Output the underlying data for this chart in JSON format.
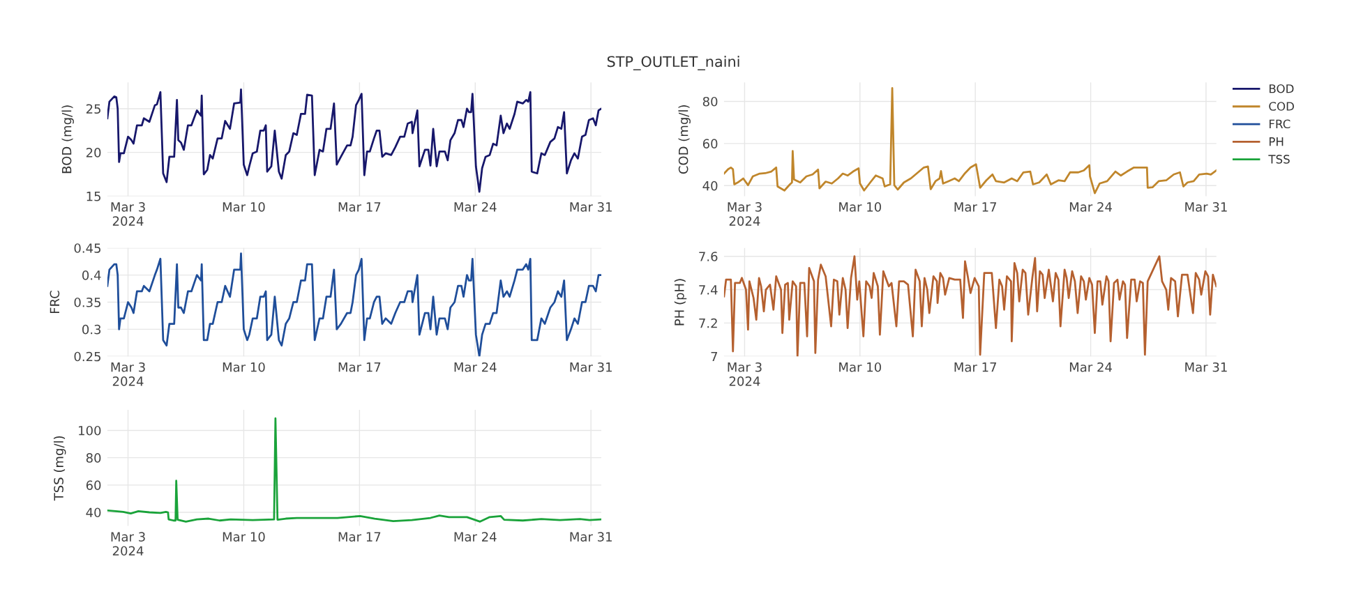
{
  "chart_data": [
    {
      "type": "line",
      "title": "STP_OUTLET_naini",
      "ylabel": "BOD (mg/l)",
      "grid": true,
      "marker": "none",
      "line_style": "solid",
      "xlim": [
        "2024-03-01T18:00",
        "2024-03-31T15:00"
      ],
      "ylim": [
        15,
        28
      ],
      "yticks": [
        15,
        20,
        25
      ],
      "xticks": [
        {
          "value": "2024-03-03",
          "label": "Mar 3\n2024"
        },
        {
          "value": "2024-03-10",
          "label": "Mar 10"
        },
        {
          "value": "2024-03-17",
          "label": "Mar 17"
        },
        {
          "value": "2024-03-24",
          "label": "Mar 24"
        },
        {
          "value": "2024-03-31",
          "label": "Mar 31"
        }
      ],
      "x": [
        "2024-03-01T18:00",
        "2024-03-01T21:00",
        "2024-03-02T04:00",
        "2024-03-02T07:00",
        "2024-03-02T09:00",
        "2024-03-02T11:00",
        "2024-03-02T13:00",
        "2024-03-02T18:00",
        "2024-03-03T00:00",
        "2024-03-03T05:00",
        "2024-03-03T08:00",
        "2024-03-03T13:00",
        "2024-03-03T20:00",
        "2024-03-03T23:00",
        "2024-03-04T07:00",
        "2024-03-04T15:00",
        "2024-03-04T18:00",
        "2024-03-04T23:00",
        "2024-03-05T03:00",
        "2024-03-05T08:00",
        "2024-03-05T12:00",
        "2024-03-05T19:00",
        "2024-03-05T23:00",
        "2024-03-06T01:00",
        "2024-03-06T05:00",
        "2024-03-06T09:00",
        "2024-03-06T15:00",
        "2024-03-06T20:00",
        "2024-03-07T04:00",
        "2024-03-07T10:00",
        "2024-03-07T11:00",
        "2024-03-07T14:00",
        "2024-03-07T19:00",
        "2024-03-07T23:00",
        "2024-03-08T03:00",
        "2024-03-08T10:00",
        "2024-03-08T16:00",
        "2024-03-08T21:00",
        "2024-03-09T04:00",
        "2024-03-09T10:00",
        "2024-03-09T19:00",
        "2024-03-09T20:00",
        "2024-03-10T00:00",
        "2024-03-10T05:00",
        "2024-03-10T08:00",
        "2024-03-10T13:00",
        "2024-03-10T19:00",
        "2024-03-11T00:00",
        "2024-03-11T05:00",
        "2024-03-11T08:00",
        "2024-03-11T10:00",
        "2024-03-11T16:00",
        "2024-03-11T21:00",
        "2024-03-12T03:00",
        "2024-03-12T07:00",
        "2024-03-12T13:00",
        "2024-03-12T18:00",
        "2024-03-13T00:00",
        "2024-03-13T05:00",
        "2024-03-13T11:00",
        "2024-03-13T17:00",
        "2024-03-13T20:00",
        "2024-03-14T03:00",
        "2024-03-14T07:00",
        "2024-03-14T14:00",
        "2024-03-14T19:00",
        "2024-03-15T00:00",
        "2024-03-15T06:00",
        "2024-03-15T11:00",
        "2024-03-15T15:00",
        "2024-03-15T21:00",
        "2024-03-16T06:00",
        "2024-03-16T11:00",
        "2024-03-16T14:00",
        "2024-03-16T19:00",
        "2024-03-16T23:00",
        "2024-03-17T03:00",
        "2024-03-17T07:00",
        "2024-03-17T11:00",
        "2024-03-17T15:00",
        "2024-03-17T21:00",
        "2024-03-18T01:00",
        "2024-03-18T05:00",
        "2024-03-18T09:00",
        "2024-03-18T14:00",
        "2024-03-18T22:00",
        "2024-03-19T04:00",
        "2024-03-19T11:00",
        "2024-03-19T17:00",
        "2024-03-19T22:00",
        "2024-03-20T04:00",
        "2024-03-20T05:00",
        "2024-03-20T12:00",
        "2024-03-20T15:00",
        "2024-03-20T23:00",
        "2024-03-21T04:00",
        "2024-03-21T07:00",
        "2024-03-21T11:00",
        "2024-03-21T16:00",
        "2024-03-21T20:00",
        "2024-03-22T04:00",
        "2024-03-22T08:00",
        "2024-03-22T12:00",
        "2024-03-22T18:00",
        "2024-03-22T23:00",
        "2024-03-23T04:00",
        "2024-03-23T07:00",
        "2024-03-23T12:00",
        "2024-03-23T15:00",
        "2024-03-23T18:00",
        "2024-03-23T20:00",
        "2024-03-24T01:00",
        "2024-03-24T06:00",
        "2024-03-24T10:00",
        "2024-03-24T15:00",
        "2024-03-24T21:00",
        "2024-03-25T02:00",
        "2024-03-25T07:00",
        "2024-03-25T13:00",
        "2024-03-25T17:00",
        "2024-03-25T22:00",
        "2024-03-26T02:00",
        "2024-03-26T09:00",
        "2024-03-26T13:00",
        "2024-03-26T21:00",
        "2024-03-27T02:00",
        "2024-03-27T05:00",
        "2024-03-27T08:00",
        "2024-03-27T10:00",
        "2024-03-27T18:00",
        "2024-03-28T00:00",
        "2024-03-28T05:00",
        "2024-03-28T13:00",
        "2024-03-28T19:00",
        "2024-03-29T00:00",
        "2024-03-29T05:00",
        "2024-03-29T09:00",
        "2024-03-29T13:00",
        "2024-03-29T19:00",
        "2024-03-30T00:00",
        "2024-03-30T05:00",
        "2024-03-30T11:00",
        "2024-03-30T16:00",
        "2024-03-30T21:00",
        "2024-03-31T03:00",
        "2024-03-31T07:00",
        "2024-03-31T11:00",
        "2024-03-31T15:00"
      ],
      "series": [
        {
          "name": "BOD",
          "color": "#17176b",
          "values": [
            23.9,
            25.8,
            26.4,
            26.3,
            25.0,
            18.9,
            19.9,
            19.9,
            21.8,
            21.4,
            21.0,
            23.1,
            23.1,
            23.9,
            23.5,
            25.4,
            25.5,
            26.9,
            17.6,
            16.6,
            19.5,
            19.5,
            26.0,
            21.4,
            21.1,
            20.3,
            23.1,
            23.1,
            24.8,
            24.2,
            26.5,
            17.5,
            18.0,
            19.7,
            19.3,
            21.6,
            21.6,
            23.6,
            22.7,
            25.6,
            25.7,
            27.2,
            18.6,
            17.4,
            18.4,
            19.9,
            20.1,
            22.5,
            22.5,
            23.1,
            17.8,
            18.4,
            22.5,
            17.8,
            17.0,
            19.7,
            20.1,
            22.2,
            22.0,
            24.4,
            24.4,
            26.6,
            26.5,
            17.4,
            20.3,
            20.1,
            22.7,
            22.7,
            25.6,
            18.6,
            19.5,
            20.8,
            20.8,
            21.8,
            25.4,
            26.0,
            26.7,
            17.4,
            20.1,
            20.1,
            21.6,
            22.5,
            22.5,
            19.5,
            19.9,
            19.7,
            20.6,
            21.8,
            21.8,
            23.3,
            23.5,
            22.2,
            24.8,
            18.4,
            20.3,
            20.3,
            18.5,
            22.7,
            18.4,
            20.1,
            20.1,
            19.1,
            21.4,
            22.2,
            23.7,
            23.7,
            22.9,
            25.0,
            24.6,
            24.6,
            26.7,
            18.4,
            15.5,
            18.2,
            19.5,
            19.7,
            21.0,
            20.8,
            24.2,
            22.2,
            23.3,
            22.7,
            24.4,
            25.8,
            25.6,
            26.0,
            25.8,
            26.9,
            17.8,
            17.6,
            19.9,
            19.7,
            21.2,
            21.6,
            22.9,
            22.7,
            24.6,
            17.6,
            19.1,
            19.9,
            19.3,
            21.8,
            22.0,
            23.7,
            23.9,
            23.1,
            24.8,
            25.0
          ]
        }
      ]
    },
    {
      "type": "line",
      "ylabel": "COD (mg/l)",
      "grid": true,
      "marker": "none",
      "line_style": "solid",
      "legend": "top right",
      "xlim": [
        "2024-03-01T18:00",
        "2024-03-31T15:00"
      ],
      "ylim": [
        35,
        89
      ],
      "yticks": [
        40,
        60,
        80
      ],
      "xticks": [
        {
          "value": "2024-03-03",
          "label": "Mar 3\n2024"
        },
        {
          "value": "2024-03-10",
          "label": "Mar 10"
        },
        {
          "value": "2024-03-17",
          "label": "Mar 17"
        },
        {
          "value": "2024-03-24",
          "label": "Mar 24"
        },
        {
          "value": "2024-03-31",
          "label": "Mar 31"
        }
      ],
      "x": [
        "2024-03-01T18:00",
        "2024-03-02T00:00",
        "2024-03-02T04:00",
        "2024-03-02T07:00",
        "2024-03-02T09:00",
        "2024-03-02T14:00",
        "2024-03-02T22:00",
        "2024-03-03T05:00",
        "2024-03-03T12:00",
        "2024-03-03T22:00",
        "2024-03-04T06:00",
        "2024-03-04T15:00",
        "2024-03-04T22:00",
        "2024-03-05T00:00",
        "2024-03-05T10:00",
        "2024-03-05T18:00",
        "2024-03-05T21:00",
        "2024-03-05T22:00",
        "2024-03-06T00:00",
        "2024-03-06T09:00",
        "2024-03-06T18:00",
        "2024-03-07T03:00",
        "2024-03-07T11:00",
        "2024-03-07T13:00",
        "2024-03-07T22:00",
        "2024-03-08T07:00",
        "2024-03-08T16:00",
        "2024-03-08T23:00",
        "2024-03-09T06:00",
        "2024-03-09T14:00",
        "2024-03-09T22:00",
        "2024-03-10T00:00",
        "2024-03-10T06:00",
        "2024-03-10T15:00",
        "2024-03-10T23:00",
        "2024-03-11T09:00",
        "2024-03-11T12:00",
        "2024-03-11T20:00",
        "2024-03-11T23:00",
        "2024-03-12T02:00",
        "2024-03-12T07:00",
        "2024-03-12T16:00",
        "2024-03-13T02:00",
        "2024-03-13T09:00",
        "2024-03-13T21:00",
        "2024-03-14T03:00",
        "2024-03-14T07:00",
        "2024-03-14T14:00",
        "2024-03-14T20:00",
        "2024-03-14T22:00",
        "2024-03-15T01:00",
        "2024-03-15T09:00",
        "2024-03-15T18:00",
        "2024-03-16T00:00",
        "2024-03-16T09:00",
        "2024-03-16T17:00",
        "2024-03-17T01:00",
        "2024-03-17T07:00",
        "2024-03-17T16:00",
        "2024-03-18T01:00",
        "2024-03-18T06:00",
        "2024-03-18T18:00",
        "2024-03-19T05:00",
        "2024-03-19T13:00",
        "2024-03-19T22:00",
        "2024-03-20T08:00",
        "2024-03-20T12:00",
        "2024-03-20T21:00",
        "2024-03-21T08:00",
        "2024-03-21T14:00",
        "2024-03-22T01:00",
        "2024-03-22T10:00",
        "2024-03-22T18:00",
        "2024-03-23T06:00",
        "2024-03-23T14:00",
        "2024-03-23T22:00",
        "2024-03-23T23:00",
        "2024-03-24T06:00",
        "2024-03-24T13:00",
        "2024-03-25T00:00",
        "2024-03-25T12:00",
        "2024-03-25T20:00",
        "2024-03-26T05:00",
        "2024-03-26T15:00",
        "2024-03-27T01:00",
        "2024-03-27T10:00",
        "2024-03-27T11:00",
        "2024-03-27T18:00",
        "2024-03-28T03:00",
        "2024-03-28T14:00",
        "2024-03-29T01:00",
        "2024-03-29T10:00",
        "2024-03-29T15:00",
        "2024-03-29T21:00",
        "2024-03-30T06:00",
        "2024-03-30T14:00",
        "2024-03-31T01:00",
        "2024-03-31T07:00",
        "2024-03-31T15:00"
      ],
      "series": [
        {
          "name": "COD",
          "color": "#c0862b",
          "values": [
            45.7,
            47.8,
            48.6,
            47.8,
            40.6,
            41.5,
            43.4,
            40.2,
            44.4,
            45.7,
            45.9,
            46.7,
            48.6,
            39.6,
            37.7,
            40.6,
            41.5,
            56.4,
            42.9,
            41.5,
            44.4,
            45.3,
            47.6,
            38.7,
            41.9,
            41.0,
            43.4,
            45.7,
            44.8,
            46.7,
            48.2,
            41.0,
            37.7,
            41.5,
            44.8,
            43.4,
            39.6,
            40.6,
            86.3,
            40.2,
            38.1,
            41.5,
            43.4,
            45.3,
            48.6,
            49.1,
            38.3,
            42.1,
            43.4,
            46.9,
            41.0,
            42.1,
            43.4,
            42.1,
            45.9,
            48.6,
            50.1,
            39.0,
            42.5,
            45.3,
            42.1,
            41.5,
            43.4,
            42.1,
            46.3,
            46.7,
            40.6,
            41.5,
            45.3,
            40.6,
            42.5,
            42.1,
            46.3,
            46.3,
            47.2,
            49.7,
            44.4,
            36.4,
            41.0,
            42.1,
            46.7,
            44.8,
            46.7,
            48.6,
            48.6,
            48.6,
            39.0,
            39.2,
            42.1,
            42.5,
            45.3,
            46.3,
            39.6,
            41.5,
            42.1,
            45.3,
            45.7,
            45.3,
            47.2
          ]
        }
      ]
    },
    {
      "type": "line",
      "ylabel": "FRC",
      "grid": true,
      "marker": "none",
      "line_style": "solid",
      "xlim": [
        "2024-03-01T18:00",
        "2024-03-31T15:00"
      ],
      "ylim": [
        0.25,
        0.45
      ],
      "yticks": [
        0.25,
        0.3,
        0.35,
        0.4,
        0.45
      ],
      "xticks": [
        {
          "value": "2024-03-03",
          "label": "Mar 3\n2024"
        },
        {
          "value": "2024-03-10",
          "label": "Mar 10"
        },
        {
          "value": "2024-03-17",
          "label": "Mar 17"
        },
        {
          "value": "2024-03-24",
          "label": "Mar 24"
        },
        {
          "value": "2024-03-31",
          "label": "Mar 31"
        }
      ],
      "x": [
        "2024-03-01T18:00",
        "2024-03-01T21:00",
        "2024-03-02T04:00",
        "2024-03-02T07:00",
        "2024-03-02T09:00",
        "2024-03-02T11:00",
        "2024-03-02T13:00",
        "2024-03-02T18:00",
        "2024-03-03T00:00",
        "2024-03-03T05:00",
        "2024-03-03T08:00",
        "2024-03-03T13:00",
        "2024-03-03T20:00",
        "2024-03-03T23:00",
        "2024-03-04T07:00",
        "2024-03-04T15:00",
        "2024-03-04T18:00",
        "2024-03-04T23:00",
        "2024-03-05T03:00",
        "2024-03-05T08:00",
        "2024-03-05T12:00",
        "2024-03-05T19:00",
        "2024-03-05T23:00",
        "2024-03-06T01:00",
        "2024-03-06T05:00",
        "2024-03-06T09:00",
        "2024-03-06T15:00",
        "2024-03-06T20:00",
        "2024-03-07T04:00",
        "2024-03-07T10:00",
        "2024-03-07T11:00",
        "2024-03-07T14:00",
        "2024-03-07T19:00",
        "2024-03-07T23:00",
        "2024-03-08T03:00",
        "2024-03-08T10:00",
        "2024-03-08T16:00",
        "2024-03-08T21:00",
        "2024-03-09T04:00",
        "2024-03-09T10:00",
        "2024-03-09T19:00",
        "2024-03-09T20:00",
        "2024-03-10T00:00",
        "2024-03-10T05:00",
        "2024-03-10T08:00",
        "2024-03-10T13:00",
        "2024-03-10T19:00",
        "2024-03-11T00:00",
        "2024-03-11T05:00",
        "2024-03-11T08:00",
        "2024-03-11T10:00",
        "2024-03-11T16:00",
        "2024-03-11T21:00",
        "2024-03-12T03:00",
        "2024-03-12T07:00",
        "2024-03-12T13:00",
        "2024-03-12T18:00",
        "2024-03-13T00:00",
        "2024-03-13T05:00",
        "2024-03-13T11:00",
        "2024-03-13T17:00",
        "2024-03-13T20:00",
        "2024-03-14T03:00",
        "2024-03-14T07:00",
        "2024-03-14T14:00",
        "2024-03-14T19:00",
        "2024-03-15T00:00",
        "2024-03-15T06:00",
        "2024-03-15T11:00",
        "2024-03-15T15:00",
        "2024-03-15T21:00",
        "2024-03-16T06:00",
        "2024-03-16T11:00",
        "2024-03-16T14:00",
        "2024-03-16T19:00",
        "2024-03-16T23:00",
        "2024-03-17T03:00",
        "2024-03-17T07:00",
        "2024-03-17T11:00",
        "2024-03-17T15:00",
        "2024-03-17T21:00",
        "2024-03-18T01:00",
        "2024-03-18T05:00",
        "2024-03-18T09:00",
        "2024-03-18T14:00",
        "2024-03-18T22:00",
        "2024-03-19T04:00",
        "2024-03-19T11:00",
        "2024-03-19T17:00",
        "2024-03-19T22:00",
        "2024-03-20T04:00",
        "2024-03-20T05:00",
        "2024-03-20T12:00",
        "2024-03-20T15:00",
        "2024-03-20T23:00",
        "2024-03-21T04:00",
        "2024-03-21T07:00",
        "2024-03-21T11:00",
        "2024-03-21T16:00",
        "2024-03-21T20:00",
        "2024-03-22T04:00",
        "2024-03-22T08:00",
        "2024-03-22T12:00",
        "2024-03-22T18:00",
        "2024-03-22T23:00",
        "2024-03-23T04:00",
        "2024-03-23T07:00",
        "2024-03-23T12:00",
        "2024-03-23T15:00",
        "2024-03-23T18:00",
        "2024-03-23T20:00",
        "2024-03-24T01:00",
        "2024-03-24T06:00",
        "2024-03-24T10:00",
        "2024-03-24T15:00",
        "2024-03-24T21:00",
        "2024-03-25T02:00",
        "2024-03-25T07:00",
        "2024-03-25T13:00",
        "2024-03-25T17:00",
        "2024-03-25T22:00",
        "2024-03-26T02:00",
        "2024-03-26T09:00",
        "2024-03-26T13:00",
        "2024-03-26T21:00",
        "2024-03-27T02:00",
        "2024-03-27T05:00",
        "2024-03-27T08:00",
        "2024-03-27T10:00",
        "2024-03-27T18:00",
        "2024-03-28T00:00",
        "2024-03-28T05:00",
        "2024-03-28T13:00",
        "2024-03-28T19:00",
        "2024-03-29T00:00",
        "2024-03-29T05:00",
        "2024-03-29T09:00",
        "2024-03-29T13:00",
        "2024-03-29T19:00",
        "2024-03-30T00:00",
        "2024-03-30T05:00",
        "2024-03-30T11:00",
        "2024-03-30T16:00",
        "2024-03-30T21:00",
        "2024-03-31T03:00",
        "2024-03-31T07:00",
        "2024-03-31T11:00",
        "2024-03-31T15:00"
      ],
      "series": [
        {
          "name": "FRC",
          "color": "#1f4e9a",
          "values": [
            0.38,
            0.41,
            0.42,
            0.42,
            0.4,
            0.3,
            0.32,
            0.32,
            0.35,
            0.34,
            0.33,
            0.37,
            0.37,
            0.38,
            0.37,
            0.4,
            0.41,
            0.43,
            0.28,
            0.27,
            0.31,
            0.31,
            0.42,
            0.34,
            0.34,
            0.33,
            0.37,
            0.37,
            0.4,
            0.39,
            0.42,
            0.28,
            0.28,
            0.31,
            0.31,
            0.35,
            0.35,
            0.38,
            0.36,
            0.41,
            0.41,
            0.44,
            0.3,
            0.28,
            0.29,
            0.32,
            0.32,
            0.36,
            0.36,
            0.37,
            0.28,
            0.29,
            0.36,
            0.28,
            0.27,
            0.31,
            0.32,
            0.35,
            0.35,
            0.39,
            0.39,
            0.42,
            0.42,
            0.28,
            0.32,
            0.32,
            0.36,
            0.36,
            0.41,
            0.3,
            0.31,
            0.33,
            0.33,
            0.35,
            0.4,
            0.41,
            0.43,
            0.28,
            0.32,
            0.32,
            0.35,
            0.36,
            0.36,
            0.31,
            0.32,
            0.31,
            0.33,
            0.35,
            0.35,
            0.37,
            0.37,
            0.35,
            0.4,
            0.29,
            0.33,
            0.33,
            0.3,
            0.36,
            0.29,
            0.32,
            0.32,
            0.3,
            0.34,
            0.35,
            0.38,
            0.38,
            0.36,
            0.4,
            0.39,
            0.39,
            0.43,
            0.29,
            0.25,
            0.29,
            0.31,
            0.31,
            0.33,
            0.33,
            0.39,
            0.36,
            0.37,
            0.36,
            0.39,
            0.41,
            0.41,
            0.42,
            0.41,
            0.43,
            0.28,
            0.28,
            0.32,
            0.31,
            0.34,
            0.35,
            0.37,
            0.36,
            0.39,
            0.28,
            0.3,
            0.32,
            0.31,
            0.35,
            0.35,
            0.38,
            0.38,
            0.37,
            0.4,
            0.4
          ]
        }
      ]
    },
    {
      "type": "line",
      "ylabel": "PH (pH)",
      "grid": true,
      "marker": "none",
      "line_style": "solid",
      "xlim": [
        "2024-03-01T18:00",
        "2024-03-31T15:00"
      ],
      "ylim": [
        7.0,
        7.65
      ],
      "yticks": [
        7,
        7.2,
        7.4,
        7.6
      ],
      "xticks": [
        {
          "value": "2024-03-03",
          "label": "Mar 3\n2024"
        },
        {
          "value": "2024-03-10",
          "label": "Mar 10"
        },
        {
          "value": "2024-03-17",
          "label": "Mar 17"
        },
        {
          "value": "2024-03-24",
          "label": "Mar 24"
        },
        {
          "value": "2024-03-31",
          "label": "Mar 31"
        }
      ],
      "x": [
        "2024-03-01T18:00",
        "2024-03-01T21:00",
        "2024-03-02T04:00",
        "2024-03-02T07:00",
        "2024-03-02T10:00",
        "2024-03-02T17:00",
        "2024-03-02T20:00",
        "2024-03-03T02:00",
        "2024-03-03T05:00",
        "2024-03-03T07:00",
        "2024-03-03T13:00",
        "2024-03-03T17:00",
        "2024-03-03T21:00",
        "2024-03-04T00:00",
        "2024-03-04T04:00",
        "2024-03-04T07:00",
        "2024-03-04T13:00",
        "2024-03-04T18:00",
        "2024-03-04T22:00",
        "2024-03-05T05:00",
        "2024-03-05T07:00",
        "2024-03-05T11:00",
        "2024-03-05T15:00",
        "2024-03-05T17:00",
        "2024-03-05T22:00",
        "2024-03-06T03:00",
        "2024-03-06T05:00",
        "2024-03-06T09:00",
        "2024-03-06T15:00",
        "2024-03-06T19:00",
        "2024-03-06T22:00",
        "2024-03-07T05:00",
        "2024-03-07T07:00",
        "2024-03-07T11:00",
        "2024-03-07T15:00",
        "2024-03-07T22:00",
        "2024-03-08T06:00",
        "2024-03-08T10:00",
        "2024-03-08T15:00",
        "2024-03-08T18:00",
        "2024-03-08T23:00",
        "2024-03-09T03:00",
        "2024-03-09T06:00",
        "2024-03-09T11:00",
        "2024-03-09T16:00",
        "2024-03-09T20:00",
        "2024-03-09T23:00",
        "2024-03-10T05:00",
        "2024-03-10T09:00",
        "2024-03-10T14:00",
        "2024-03-10T17:00",
        "2024-03-10T20:00",
        "2024-03-11T02:00",
        "2024-03-11T05:00",
        "2024-03-11T10:00",
        "2024-03-11T18:00",
        "2024-03-11T22:00",
        "2024-03-12T05:00",
        "2024-03-12T09:00",
        "2024-03-12T16:00",
        "2024-03-12T22:00",
        "2024-03-13T05:00",
        "2024-03-13T09:00",
        "2024-03-13T15:00",
        "2024-03-13T18:00",
        "2024-03-13T22:00",
        "2024-03-14T02:00",
        "2024-03-14T05:00",
        "2024-03-14T11:00",
        "2024-03-14T16:00",
        "2024-03-14T17:00",
        "2024-03-14T21:00",
        "2024-03-15T01:00",
        "2024-03-15T04:00",
        "2024-03-15T10:00",
        "2024-03-15T18:00",
        "2024-03-16T02:00",
        "2024-03-16T06:00",
        "2024-03-16T09:00",
        "2024-03-16T13:00",
        "2024-03-16T17:00",
        "2024-03-16T23:00",
        "2024-03-17T05:00",
        "2024-03-17T07:00",
        "2024-03-17T13:00",
        "2024-03-18T00:00",
        "2024-03-18T06:00",
        "2024-03-18T11:00",
        "2024-03-18T15:00",
        "2024-03-18T18:00",
        "2024-03-18T22:00",
        "2024-03-19T04:00",
        "2024-03-19T05:00",
        "2024-03-19T09:00",
        "2024-03-19T13:00",
        "2024-03-19T16:00",
        "2024-03-19T21:00",
        "2024-03-20T01:00",
        "2024-03-20T05:00",
        "2024-03-20T11:00",
        "2024-03-20T15:00",
        "2024-03-20T18:00",
        "2024-03-20T22:00",
        "2024-03-21T02:00",
        "2024-03-21T05:00",
        "2024-03-21T11:00",
        "2024-03-21T17:00",
        "2024-03-21T21:00",
        "2024-03-22T01:00",
        "2024-03-22T04:00",
        "2024-03-22T10:00",
        "2024-03-22T13:00",
        "2024-03-22T16:00",
        "2024-03-22T21:00",
        "2024-03-23T01:00",
        "2024-03-23T05:00",
        "2024-03-23T10:00",
        "2024-03-23T14:00",
        "2024-03-23T17:00",
        "2024-03-23T22:00",
        "2024-03-24T02:00",
        "2024-03-24T06:00",
        "2024-03-24T10:00",
        "2024-03-24T14:00",
        "2024-03-24T17:00",
        "2024-03-24T23:00",
        "2024-03-25T02:00",
        "2024-03-25T05:00",
        "2024-03-25T10:00",
        "2024-03-25T15:00",
        "2024-03-25T18:00",
        "2024-03-25T23:00",
        "2024-03-26T02:00",
        "2024-03-26T05:00",
        "2024-03-26T11:00",
        "2024-03-26T16:00",
        "2024-03-26T19:00",
        "2024-03-27T00:00",
        "2024-03-27T04:00",
        "2024-03-27T07:00",
        "2024-03-27T11:00",
        "2024-03-28T04:00",
        "2024-03-28T08:00",
        "2024-03-28T14:00",
        "2024-03-28T17:00",
        "2024-03-28T21:00",
        "2024-03-29T03:00",
        "2024-03-29T07:00",
        "2024-03-29T13:00",
        "2024-03-29T21:00",
        "2024-03-30T05:00",
        "2024-03-30T09:00",
        "2024-03-30T14:00",
        "2024-03-30T17:00",
        "2024-03-30T23:00",
        "2024-03-31T03:00",
        "2024-03-31T06:00",
        "2024-03-31T10:00",
        "2024-03-31T15:00"
      ],
      "series": [
        {
          "name": "PH",
          "color": "#b5602f",
          "values": [
            7.36,
            7.46,
            7.46,
            7.03,
            7.44,
            7.44,
            7.47,
            7.4,
            7.16,
            7.45,
            7.35,
            7.22,
            7.47,
            7.42,
            7.27,
            7.4,
            7.43,
            7.28,
            7.48,
            7.4,
            7.14,
            7.43,
            7.44,
            7.22,
            7.45,
            7.42,
            7.0,
            7.44,
            7.44,
            7.12,
            7.53,
            7.45,
            7.02,
            7.46,
            7.55,
            7.48,
            7.18,
            7.46,
            7.45,
            7.25,
            7.47,
            7.4,
            7.17,
            7.47,
            7.6,
            7.34,
            7.45,
            7.12,
            7.45,
            7.42,
            7.35,
            7.5,
            7.42,
            7.13,
            7.51,
            7.42,
            7.44,
            7.18,
            7.45,
            7.45,
            7.43,
            7.12,
            7.52,
            7.45,
            7.18,
            7.47,
            7.4,
            7.26,
            7.48,
            7.45,
            7.32,
            7.5,
            7.47,
            7.37,
            7.47,
            7.46,
            7.46,
            7.23,
            7.57,
            7.48,
            7.38,
            7.47,
            7.42,
            7.01,
            7.5,
            7.5,
            7.17,
            7.46,
            7.42,
            7.28,
            7.48,
            7.45,
            7.09,
            7.56,
            7.5,
            7.33,
            7.52,
            7.5,
            7.25,
            7.47,
            7.59,
            7.27,
            7.51,
            7.49,
            7.35,
            7.52,
            7.33,
            7.5,
            7.46,
            7.18,
            7.52,
            7.47,
            7.35,
            7.51,
            7.45,
            7.26,
            7.48,
            7.45,
            7.34,
            7.47,
            7.43,
            7.14,
            7.45,
            7.45,
            7.31,
            7.48,
            7.45,
            7.09,
            7.44,
            7.46,
            7.34,
            7.45,
            7.43,
            7.11,
            7.46,
            7.46,
            7.33,
            7.45,
            7.44,
            7.01,
            7.45,
            7.6,
            7.45,
            7.4,
            7.28,
            7.47,
            7.45,
            7.24,
            7.49,
            7.49,
            7.26,
            7.5,
            7.46,
            7.37,
            7.51,
            7.48,
            7.25,
            7.49,
            7.42
          ]
        }
      ]
    },
    {
      "type": "line",
      "ylabel": "TSS (mg/l)",
      "grid": true,
      "marker": "none",
      "line_style": "solid",
      "xlim": [
        "2024-03-01T18:00",
        "2024-03-31T15:00"
      ],
      "ylim": [
        30,
        115
      ],
      "yticks": [
        40,
        60,
        80,
        100
      ],
      "xticks": [
        {
          "value": "2024-03-03",
          "label": "Mar 3\n2024"
        },
        {
          "value": "2024-03-10",
          "label": "Mar 10"
        },
        {
          "value": "2024-03-17",
          "label": "Mar 17"
        },
        {
          "value": "2024-03-24",
          "label": "Mar 24"
        },
        {
          "value": "2024-03-31",
          "label": "Mar 31"
        }
      ],
      "x": [
        "2024-03-01T18:00",
        "2024-03-02T06:00",
        "2024-03-02T17:00",
        "2024-03-03T04:00",
        "2024-03-03T15:00",
        "2024-03-04T07:00",
        "2024-03-04T23:00",
        "2024-03-05T07:00",
        "2024-03-05T10:00",
        "2024-03-05T11:00",
        "2024-03-05T18:00",
        "2024-03-05T21:00",
        "2024-03-05T22:00",
        "2024-03-06T00:00",
        "2024-03-06T12:00",
        "2024-03-07T04:00",
        "2024-03-07T21:00",
        "2024-03-08T13:00",
        "2024-03-09T05:00",
        "2024-03-09T21:00",
        "2024-03-10T13:00",
        "2024-03-11T05:00",
        "2024-03-11T20:00",
        "2024-03-11T22:00",
        "2024-03-12T01:00",
        "2024-03-12T13:00",
        "2024-03-13T05:00",
        "2024-03-13T21:00",
        "2024-03-14T19:00",
        "2024-03-15T16:00",
        "2024-03-17T01:00",
        "2024-03-17T22:00",
        "2024-03-19T01:00",
        "2024-03-20T04:00",
        "2024-03-21T07:00",
        "2024-03-21T20:00",
        "2024-03-22T10:00",
        "2024-03-23T12:00",
        "2024-03-24T07:00",
        "2024-03-24T21:00",
        "2024-03-25T13:00",
        "2024-03-25T18:00",
        "2024-03-26T21:00",
        "2024-03-28T00:00",
        "2024-03-29T03:00",
        "2024-03-30T08:00",
        "2024-03-30T22:00",
        "2024-03-31T14:00"
      ],
      "series": [
        {
          "name": "TSS",
          "color": "#1aa33a",
          "values": [
            41.4,
            40.8,
            40.3,
            39.2,
            40.8,
            40.0,
            39.5,
            40.3,
            40.0,
            34.8,
            34.0,
            34.0,
            63.1,
            34.6,
            33.2,
            34.8,
            35.4,
            34.0,
            34.8,
            34.6,
            34.3,
            34.6,
            34.8,
            108.8,
            34.6,
            35.4,
            35.9,
            35.9,
            35.9,
            35.9,
            37.3,
            35.4,
            33.5,
            34.3,
            35.9,
            37.6,
            36.5,
            36.5,
            33.2,
            36.5,
            37.3,
            34.6,
            34.0,
            35.1,
            34.3,
            35.1,
            34.3,
            34.8
          ]
        }
      ]
    }
  ]
}
